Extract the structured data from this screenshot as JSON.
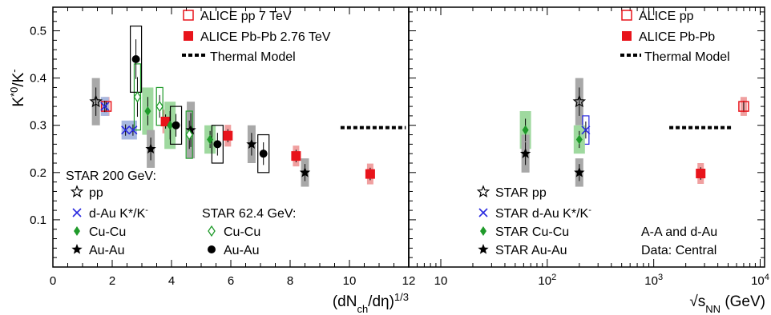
{
  "chart_data": [
    {
      "type": "scatter",
      "panel": "left",
      "ylabel_main": "K",
      "ylabel_sup1": "*0",
      "ylabel_mid": "/K",
      "ylabel_sup2": "-",
      "xlabel_main": "(dN",
      "xlabel_sub": "ch",
      "xlabel_tail": "/dη)",
      "xlabel_exp": "1/3",
      "xlim": [
        0,
        12
      ],
      "ylim": [
        0,
        0.55
      ],
      "xticks": [
        "0",
        "2",
        "4",
        "6",
        "8",
        "10",
        "12"
      ],
      "yticks": [
        "0.1",
        "0.2",
        "0.3",
        "0.4",
        "0.5"
      ],
      "legend_alice": {
        "pp": "ALICE pp 7 TeV",
        "pbpb": "ALICE Pb-Pb 2.76 TeV",
        "thermal": "Thermal Model"
      },
      "legend_star200": {
        "title": "STAR 200 GeV:",
        "pp": "pp",
        "dau": "d-Au K*/K",
        "dau_sup": "-",
        "cucu": "Cu-Cu",
        "auau": "Au-Au"
      },
      "legend_star62": {
        "title": "STAR 62.4 GeV:",
        "cucu": "Cu-Cu",
        "auau": "Au-Au"
      },
      "series": [
        {
          "name": "ALICE pp 7 TeV",
          "points": [
            {
              "x": 1.8,
              "y": 0.34,
              "sys": 0.02
            }
          ]
        },
        {
          "name": "ALICE Pb-Pb 2.76 TeV",
          "points": [
            {
              "x": 3.8,
              "y": 0.308,
              "sys": 0.025
            },
            {
              "x": 5.9,
              "y": 0.278,
              "sys": 0.023
            },
            {
              "x": 8.2,
              "y": 0.235,
              "sys": 0.022
            },
            {
              "x": 10.7,
              "y": 0.197,
              "sys": 0.022
            }
          ]
        },
        {
          "name": "Thermal Model",
          "x_range": [
            9.7,
            11.9
          ],
          "y": 0.295
        },
        {
          "name": "STAR 200 GeV pp",
          "points": [
            {
              "x": 1.45,
              "y": 0.35,
              "sys": 0.05
            }
          ]
        },
        {
          "name": "STAR 200 GeV d-Au K*/K-",
          "points": [
            {
              "x": 2.45,
              "y": 0.29,
              "sys": 0.02
            },
            {
              "x": 2.7,
              "y": 0.29,
              "sys": 0.02
            },
            {
              "x": 1.75,
              "y": 0.34,
              "sys": 0.02
            }
          ]
        },
        {
          "name": "STAR 200 GeV Cu-Cu",
          "points": [
            {
              "x": 3.2,
              "y": 0.33,
              "sys": 0.05
            },
            {
              "x": 3.95,
              "y": 0.3,
              "sys": 0.05
            },
            {
              "x": 5.3,
              "y": 0.27,
              "sys": 0.03
            }
          ]
        },
        {
          "name": "STAR 200 GeV Au-Au",
          "points": [
            {
              "x": 3.3,
              "y": 0.25,
              "sys": 0.04
            },
            {
              "x": 4.65,
              "y": 0.29,
              "sys": 0.06
            },
            {
              "x": 6.7,
              "y": 0.26,
              "sys": 0.04
            },
            {
              "x": 8.5,
              "y": 0.2,
              "sys": 0.03
            }
          ]
        },
        {
          "name": "STAR 62.4 GeV Cu-Cu",
          "points": [
            {
              "x": 2.85,
              "y": 0.36,
              "sys": 0.07
            },
            {
              "x": 3.6,
              "y": 0.34,
              "sys": 0.04
            },
            {
              "x": 4.6,
              "y": 0.28,
              "sys": 0.05
            }
          ]
        },
        {
          "name": "STAR 62.4 GeV Au-Au",
          "points": [
            {
              "x": 2.8,
              "y": 0.44,
              "sys": 0.07
            },
            {
              "x": 4.15,
              "y": 0.3,
              "sys": 0.04
            },
            {
              "x": 5.55,
              "y": 0.26,
              "sys": 0.04
            },
            {
              "x": 7.1,
              "y": 0.24,
              "sys": 0.04
            }
          ]
        }
      ]
    },
    {
      "type": "scatter",
      "panel": "right",
      "xscale": "log",
      "xlabel_main": "√s",
      "xlabel_sub": "NN",
      "xlabel_tail": " (GeV)",
      "xlim": [
        5,
        11000
      ],
      "ylim": [
        0,
        0.55
      ],
      "xticks": [
        {
          "base": "10",
          "exp": ""
        },
        {
          "base": "10",
          "exp": "2"
        },
        {
          "base": "10",
          "exp": "3"
        },
        {
          "base": "10",
          "exp": "4"
        }
      ],
      "legend_alice": {
        "pp": "ALICE pp",
        "pbpb": "ALICE Pb-Pb",
        "thermal": "Thermal Model"
      },
      "legend_star": {
        "pp": "STAR pp",
        "dau": "STAR d-Au K*/K",
        "dau_sup": "-",
        "cucu": "STAR Cu-Cu",
        "auau": "STAR Au-Au"
      },
      "note_line1": "A-A and d-Au",
      "note_line2": "Data: Central",
      "series": [
        {
          "name": "ALICE pp",
          "points": [
            {
              "x": 7000,
              "y": 0.34,
              "sys": 0.02
            }
          ]
        },
        {
          "name": "ALICE Pb-Pb",
          "points": [
            {
              "x": 2760,
              "y": 0.198,
              "sys": 0.022
            }
          ]
        },
        {
          "name": "Thermal Model",
          "x_range": [
            1400,
            5500
          ],
          "y": 0.295
        },
        {
          "name": "STAR pp",
          "points": [
            {
              "x": 200,
              "y": 0.35,
              "sys": 0.05
            }
          ]
        },
        {
          "name": "STAR d-Au K*/K-",
          "points": [
            {
              "x": 230,
              "y": 0.29,
              "sys": 0.03
            }
          ]
        },
        {
          "name": "STAR Cu-Cu",
          "points": [
            {
              "x": 62.4,
              "y": 0.29,
              "sys": 0.04
            },
            {
              "x": 200,
              "y": 0.27,
              "sys": 0.03
            }
          ]
        },
        {
          "name": "STAR Au-Au",
          "points": [
            {
              "x": 62.4,
              "y": 0.24,
              "sys": 0.04
            },
            {
              "x": 200,
              "y": 0.2,
              "sys": 0.03
            }
          ]
        }
      ]
    }
  ],
  "colors": {
    "alice": "#e8141b",
    "alice_band": "#f0a0a0",
    "star_dau": "#2a2ae0",
    "star_dau_band": "#a8b8e0",
    "star_cucu": "#1f9a2a",
    "star_cucu_band": "#9fd99f",
    "grey_band": "#a8a8a8"
  }
}
